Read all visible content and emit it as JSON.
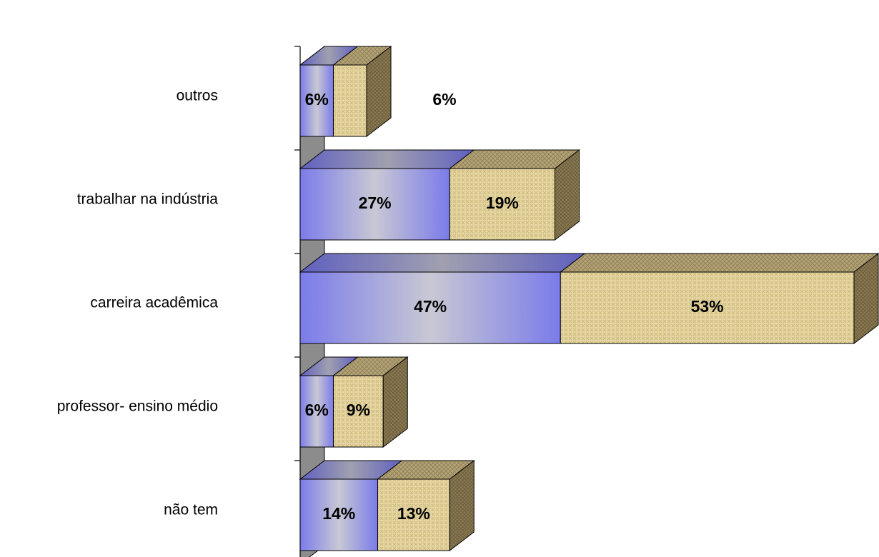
{
  "chart_data": {
    "type": "bar",
    "orientation": "horizontal",
    "stacked": true,
    "three_d": true,
    "categories": [
      "não tem",
      "professor- ensino médio",
      "carreira acadêmica",
      "trabalhar na indústria",
      "outros"
    ],
    "series": [
      {
        "values": [
          14,
          6,
          47,
          27,
          6
        ],
        "labels": [
          "14%",
          "6%",
          "47%",
          "27%",
          "6%"
        ],
        "color": "#8080e8"
      },
      {
        "values": [
          13,
          9,
          53,
          19,
          6
        ],
        "labels": [
          "13%",
          "9%",
          "53%",
          "19%",
          "6%"
        ],
        "color": "#e8d8a0"
      }
    ],
    "xlim": [
      0,
      100
    ],
    "grid": false,
    "legend": "none"
  }
}
